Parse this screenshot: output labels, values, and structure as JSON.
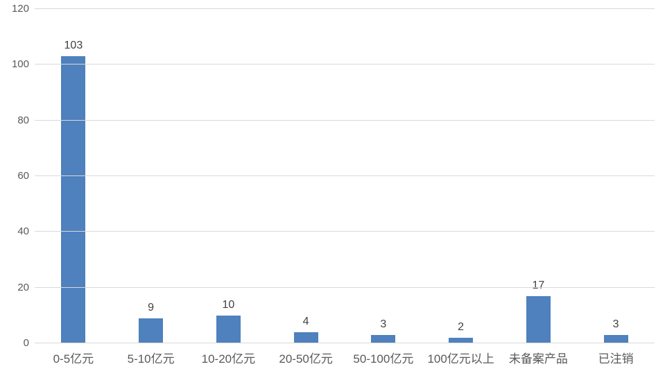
{
  "chart_data": {
    "type": "bar",
    "title": "",
    "categories": [
      "0-5亿元",
      "5-10亿元",
      "10-20亿元",
      "20-50亿元",
      "50-100亿元",
      "100亿元以上",
      "未备案产品",
      "已注销"
    ],
    "values": [
      103,
      9,
      10,
      4,
      3,
      2,
      17,
      3
    ],
    "data_labels": [
      103,
      9,
      10,
      4,
      3,
      2,
      17,
      3
    ],
    "xlabel": "",
    "ylabel": "",
    "ylim": [
      0,
      120
    ],
    "yticks": [
      0,
      20,
      40,
      60,
      80,
      100,
      120
    ],
    "grid": true,
    "legend": false,
    "colors": {
      "bar": "#4e81bd",
      "gridline": "#d9d9d9",
      "tick_text": "#595959",
      "data_label_text": "#404040",
      "background": "#ffffff"
    }
  }
}
